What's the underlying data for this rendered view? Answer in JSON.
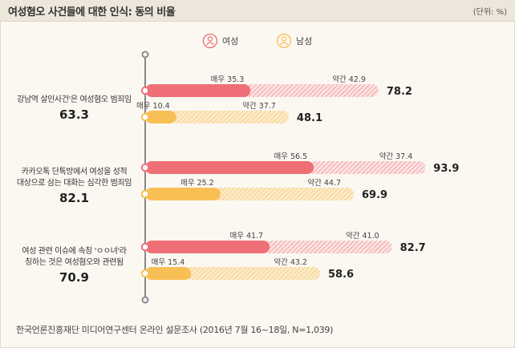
{
  "header": {
    "title": "여성혐오 사건들에 대한 인식: 동의 비율",
    "unit": "(단위: %)"
  },
  "legend": {
    "female": "여성",
    "male": "남성"
  },
  "source": "한국언론진흥재단 미디어연구센터 온라인 설문조사 (2016년 7월 16~18일, N=1,039)",
  "colors": {
    "female_strong": "#ef6f76",
    "female_weak": "#f6b6b3",
    "male_strong": "#f8bf55",
    "male_weak": "#f9d89b",
    "axis": "#888888"
  },
  "chart_data": {
    "type": "bar",
    "title": "여성혐오 사건들에 대한 인식: 동의 비율",
    "unit": "%",
    "categories": [
      {
        "label_lines": [
          "강남역 살인사건'은 여성혐오 범죄임"
        ],
        "total": "63.3",
        "female": {
          "strong_label": "매우",
          "strong": 35.3,
          "weak_label": "약간",
          "weak": 42.9,
          "sum": "78.2"
        },
        "male": {
          "strong_label": "매우",
          "strong": 10.4,
          "weak_label": "약간",
          "weak": 37.7,
          "sum": "48.1"
        }
      },
      {
        "label_lines": [
          "카카오톡 단톡방에서 여성을 성적",
          "대상으로 삼는 대화는 심각한 범죄임"
        ],
        "total": "82.1",
        "female": {
          "strong_label": "매우",
          "strong": 56.5,
          "weak_label": "약간",
          "weak": 37.4,
          "sum": "93.9"
        },
        "male": {
          "strong_label": "매우",
          "strong": 25.2,
          "weak_label": "약간",
          "weak": 44.7,
          "sum": "69.9"
        }
      },
      {
        "label_lines": [
          "여성 관련 이슈에 속칭 'ㅇㅇ녀'라",
          "칭하는 것은 여성혐오와 관련됨"
        ],
        "total": "70.9",
        "female": {
          "strong_label": "매우",
          "strong": 41.7,
          "weak_label": "약간",
          "weak": 41.0,
          "sum": "82.7"
        },
        "male": {
          "strong_label": "매우",
          "strong": 15.4,
          "weak_label": "약간",
          "weak": 43.2,
          "sum": "58.6"
        }
      }
    ],
    "series": [
      "매우",
      "약간"
    ]
  }
}
